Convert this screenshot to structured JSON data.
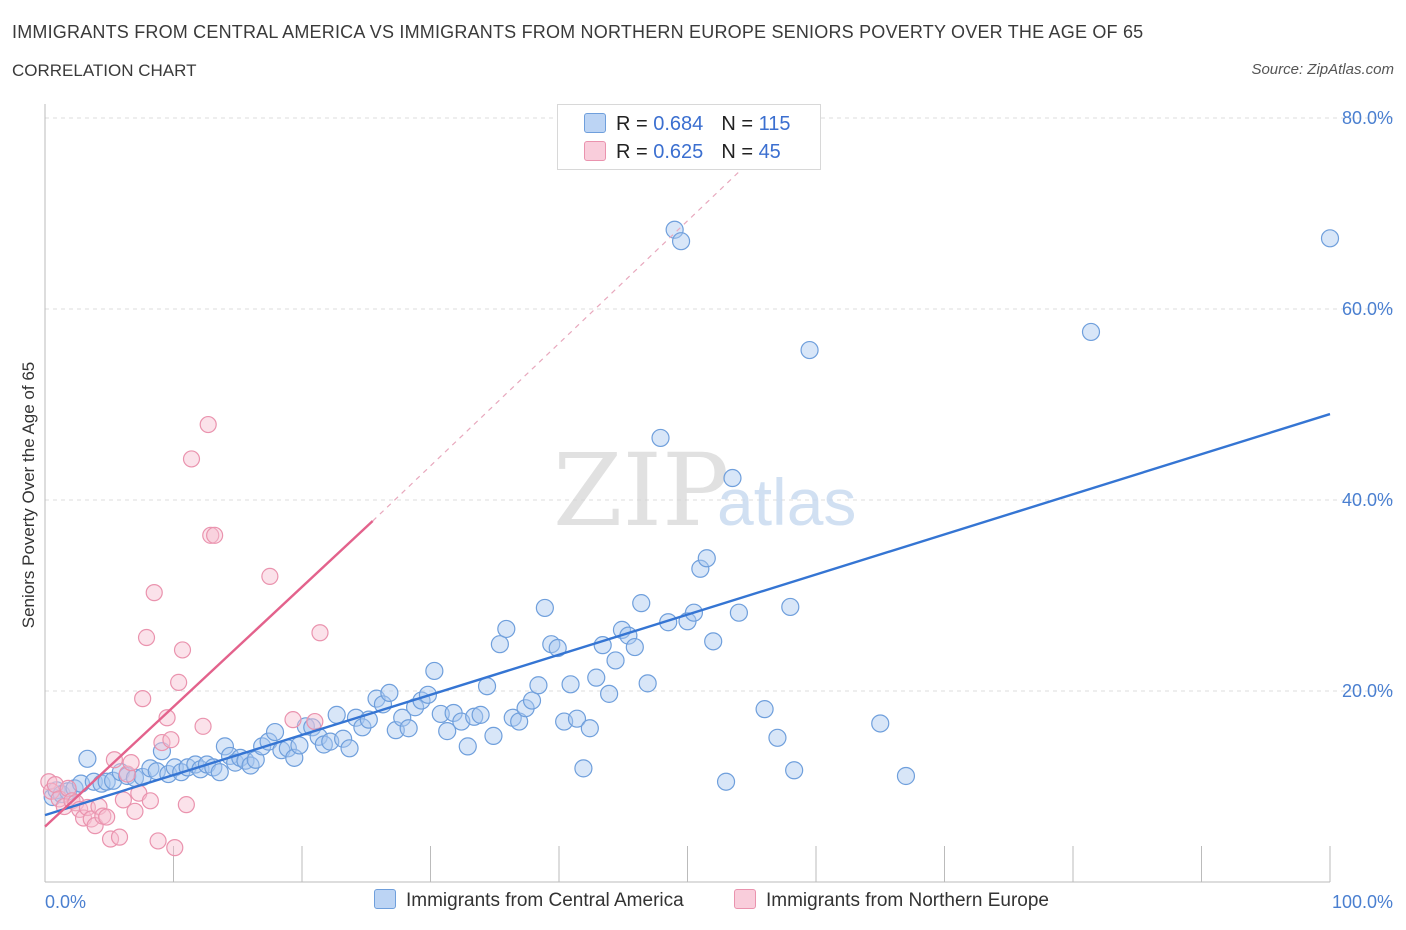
{
  "title": "IMMIGRANTS FROM CENTRAL AMERICA VS IMMIGRANTS FROM NORTHERN EUROPE SENIORS POVERTY OVER THE AGE OF 65",
  "subtitle": "CORRELATION CHART",
  "source": "Source: ZipAtlas.com",
  "watermark": {
    "zip": "ZIP",
    "atlas": "atlas"
  },
  "legend": {
    "rows": [
      {
        "r_label": "R = ",
        "r_value": "0.684",
        "n_label": "N = ",
        "n_value": "115"
      },
      {
        "r_label": "R = ",
        "r_value": "0.625",
        "n_label": "N = ",
        "n_value": "45"
      }
    ]
  },
  "colors": {
    "blue_fill": "#a9c8f0",
    "blue_stroke": "#6f9fdc",
    "blue_line": "#3575d3",
    "pink_fill": "#f7bfd0",
    "pink_stroke": "#ea93ae",
    "pink_line": "#e3628c",
    "grid": "#dcdcdc",
    "axis_text": "#4a7fd0"
  },
  "chart_data": {
    "type": "scatter",
    "xlabel": "",
    "ylabel": "Seniors Poverty Over the Age of 65",
    "xlim": [
      0,
      100
    ],
    "ylim": [
      0,
      80
    ],
    "x_tick_labels": [
      "0.0%",
      "100.0%"
    ],
    "y_ticks": [
      20,
      40,
      60,
      80
    ],
    "y_tick_labels": [
      "20.0%",
      "40.0%",
      "60.0%",
      "80.0%"
    ],
    "grid": true,
    "legend_placement": "bottom",
    "series": [
      {
        "name": "Immigrants from Central America",
        "color": "#a9c8f0",
        "points": [
          [
            0.6,
            8.9
          ],
          [
            0.9,
            9.6
          ],
          [
            1.3,
            9.2
          ],
          [
            1.8,
            9.5
          ],
          [
            2.3,
            9.8
          ],
          [
            2.8,
            10.3
          ],
          [
            3.3,
            12.9
          ],
          [
            3.8,
            10.5
          ],
          [
            4.4,
            10.3
          ],
          [
            4.8,
            10.5
          ],
          [
            5.3,
            10.6
          ],
          [
            5.9,
            11.5
          ],
          [
            6.4,
            11.1
          ],
          [
            7.0,
            10.9
          ],
          [
            7.6,
            11.0
          ],
          [
            8.2,
            11.9
          ],
          [
            8.7,
            11.6
          ],
          [
            9.1,
            13.7
          ],
          [
            9.6,
            11.3
          ],
          [
            10.1,
            12.0
          ],
          [
            10.6,
            11.5
          ],
          [
            11.1,
            12.0
          ],
          [
            11.7,
            12.3
          ],
          [
            12.1,
            11.8
          ],
          [
            12.6,
            12.3
          ],
          [
            13.1,
            12.0
          ],
          [
            13.6,
            11.5
          ],
          [
            14.0,
            14.2
          ],
          [
            14.4,
            13.2
          ],
          [
            14.8,
            12.5
          ],
          [
            15.2,
            13.0
          ],
          [
            15.6,
            12.7
          ],
          [
            16.0,
            12.2
          ],
          [
            16.4,
            12.8
          ],
          [
            16.9,
            14.2
          ],
          [
            17.4,
            14.7
          ],
          [
            17.9,
            15.7
          ],
          [
            18.4,
            13.8
          ],
          [
            18.9,
            14.0
          ],
          [
            19.4,
            13.0
          ],
          [
            19.8,
            14.3
          ],
          [
            20.3,
            16.3
          ],
          [
            20.8,
            16.2
          ],
          [
            21.3,
            15.2
          ],
          [
            21.7,
            14.4
          ],
          [
            22.2,
            14.7
          ],
          [
            22.7,
            17.5
          ],
          [
            23.2,
            15.0
          ],
          [
            23.7,
            14.0
          ],
          [
            24.2,
            17.2
          ],
          [
            24.7,
            16.2
          ],
          [
            25.2,
            17.0
          ],
          [
            25.8,
            19.2
          ],
          [
            26.3,
            18.6
          ],
          [
            26.8,
            19.8
          ],
          [
            27.3,
            15.9
          ],
          [
            27.8,
            17.2
          ],
          [
            28.3,
            16.1
          ],
          [
            28.8,
            18.3
          ],
          [
            29.3,
            19.0
          ],
          [
            29.8,
            19.6
          ],
          [
            30.3,
            22.1
          ],
          [
            30.8,
            17.6
          ],
          [
            31.3,
            15.8
          ],
          [
            31.8,
            17.7
          ],
          [
            32.4,
            16.8
          ],
          [
            32.9,
            14.2
          ],
          [
            33.4,
            17.3
          ],
          [
            33.9,
            17.5
          ],
          [
            34.4,
            20.5
          ],
          [
            34.9,
            15.3
          ],
          [
            35.4,
            24.9
          ],
          [
            35.9,
            26.5
          ],
          [
            36.4,
            17.2
          ],
          [
            36.9,
            16.8
          ],
          [
            37.4,
            18.2
          ],
          [
            37.9,
            19.0
          ],
          [
            38.4,
            20.6
          ],
          [
            38.9,
            28.7
          ],
          [
            39.4,
            24.9
          ],
          [
            39.9,
            24.5
          ],
          [
            40.4,
            16.8
          ],
          [
            40.9,
            20.7
          ],
          [
            41.4,
            17.1
          ],
          [
            41.9,
            11.9
          ],
          [
            42.4,
            16.1
          ],
          [
            42.9,
            21.4
          ],
          [
            43.4,
            24.8
          ],
          [
            43.9,
            19.7
          ],
          [
            44.4,
            23.2
          ],
          [
            44.9,
            26.4
          ],
          [
            45.4,
            25.8
          ],
          [
            45.9,
            24.6
          ],
          [
            46.4,
            29.2
          ],
          [
            46.9,
            20.8
          ],
          [
            47.9,
            46.5
          ],
          [
            48.5,
            27.2
          ],
          [
            49.0,
            68.3
          ],
          [
            49.5,
            67.1
          ],
          [
            50.0,
            27.3
          ],
          [
            50.5,
            28.2
          ],
          [
            51.0,
            32.8
          ],
          [
            51.5,
            33.9
          ],
          [
            52.0,
            25.2
          ],
          [
            53.0,
            10.5
          ],
          [
            53.5,
            42.3
          ],
          [
            54.0,
            28.2
          ],
          [
            56.0,
            18.1
          ],
          [
            57.0,
            15.1
          ],
          [
            58.0,
            28.8
          ],
          [
            58.3,
            11.7
          ],
          [
            59.5,
            55.7
          ],
          [
            65.0,
            16.6
          ],
          [
            67.0,
            11.1
          ],
          [
            81.4,
            57.6
          ],
          [
            100.0,
            67.4
          ]
        ]
      },
      {
        "name": "Immigrants from Northern Europe",
        "color": "#f7bfd0",
        "points": [
          [
            0.3,
            10.5
          ],
          [
            0.5,
            9.5
          ],
          [
            0.8,
            10.2
          ],
          [
            1.1,
            8.7
          ],
          [
            1.5,
            7.9
          ],
          [
            1.8,
            9.8
          ],
          [
            2.1,
            8.5
          ],
          [
            2.4,
            8.3
          ],
          [
            2.7,
            7.6
          ],
          [
            3.0,
            6.7
          ],
          [
            3.3,
            7.8
          ],
          [
            3.6,
            6.6
          ],
          [
            3.9,
            5.9
          ],
          [
            4.2,
            7.9
          ],
          [
            4.5,
            6.9
          ],
          [
            4.8,
            6.8
          ],
          [
            5.1,
            4.5
          ],
          [
            5.4,
            12.8
          ],
          [
            5.8,
            4.7
          ],
          [
            6.1,
            8.6
          ],
          [
            6.4,
            11.3
          ],
          [
            6.7,
            12.5
          ],
          [
            7.0,
            7.4
          ],
          [
            7.3,
            9.3
          ],
          [
            7.6,
            19.2
          ],
          [
            7.9,
            25.6
          ],
          [
            8.2,
            8.5
          ],
          [
            8.5,
            30.3
          ],
          [
            8.8,
            4.3
          ],
          [
            9.1,
            14.6
          ],
          [
            9.5,
            17.2
          ],
          [
            9.8,
            14.9
          ],
          [
            10.1,
            3.6
          ],
          [
            10.4,
            20.9
          ],
          [
            10.7,
            24.3
          ],
          [
            11.0,
            8.1
          ],
          [
            11.4,
            44.3
          ],
          [
            12.3,
            16.3
          ],
          [
            12.7,
            47.9
          ],
          [
            12.9,
            36.3
          ],
          [
            13.2,
            36.3
          ],
          [
            17.5,
            32.0
          ],
          [
            19.3,
            17.0
          ],
          [
            21.4,
            26.1
          ],
          [
            21.0,
            16.8
          ]
        ]
      }
    ],
    "trend_lines": [
      {
        "series": "Immigrants from Central America",
        "x": [
          0,
          100
        ],
        "y": [
          7.0,
          49.0
        ]
      },
      {
        "series": "Immigrants from Northern Europe",
        "x": [
          0,
          25.5
        ],
        "y": [
          5.8,
          37.8
        ],
        "dashed_extension_to": [
          54.5,
          75.0
        ]
      }
    ]
  }
}
